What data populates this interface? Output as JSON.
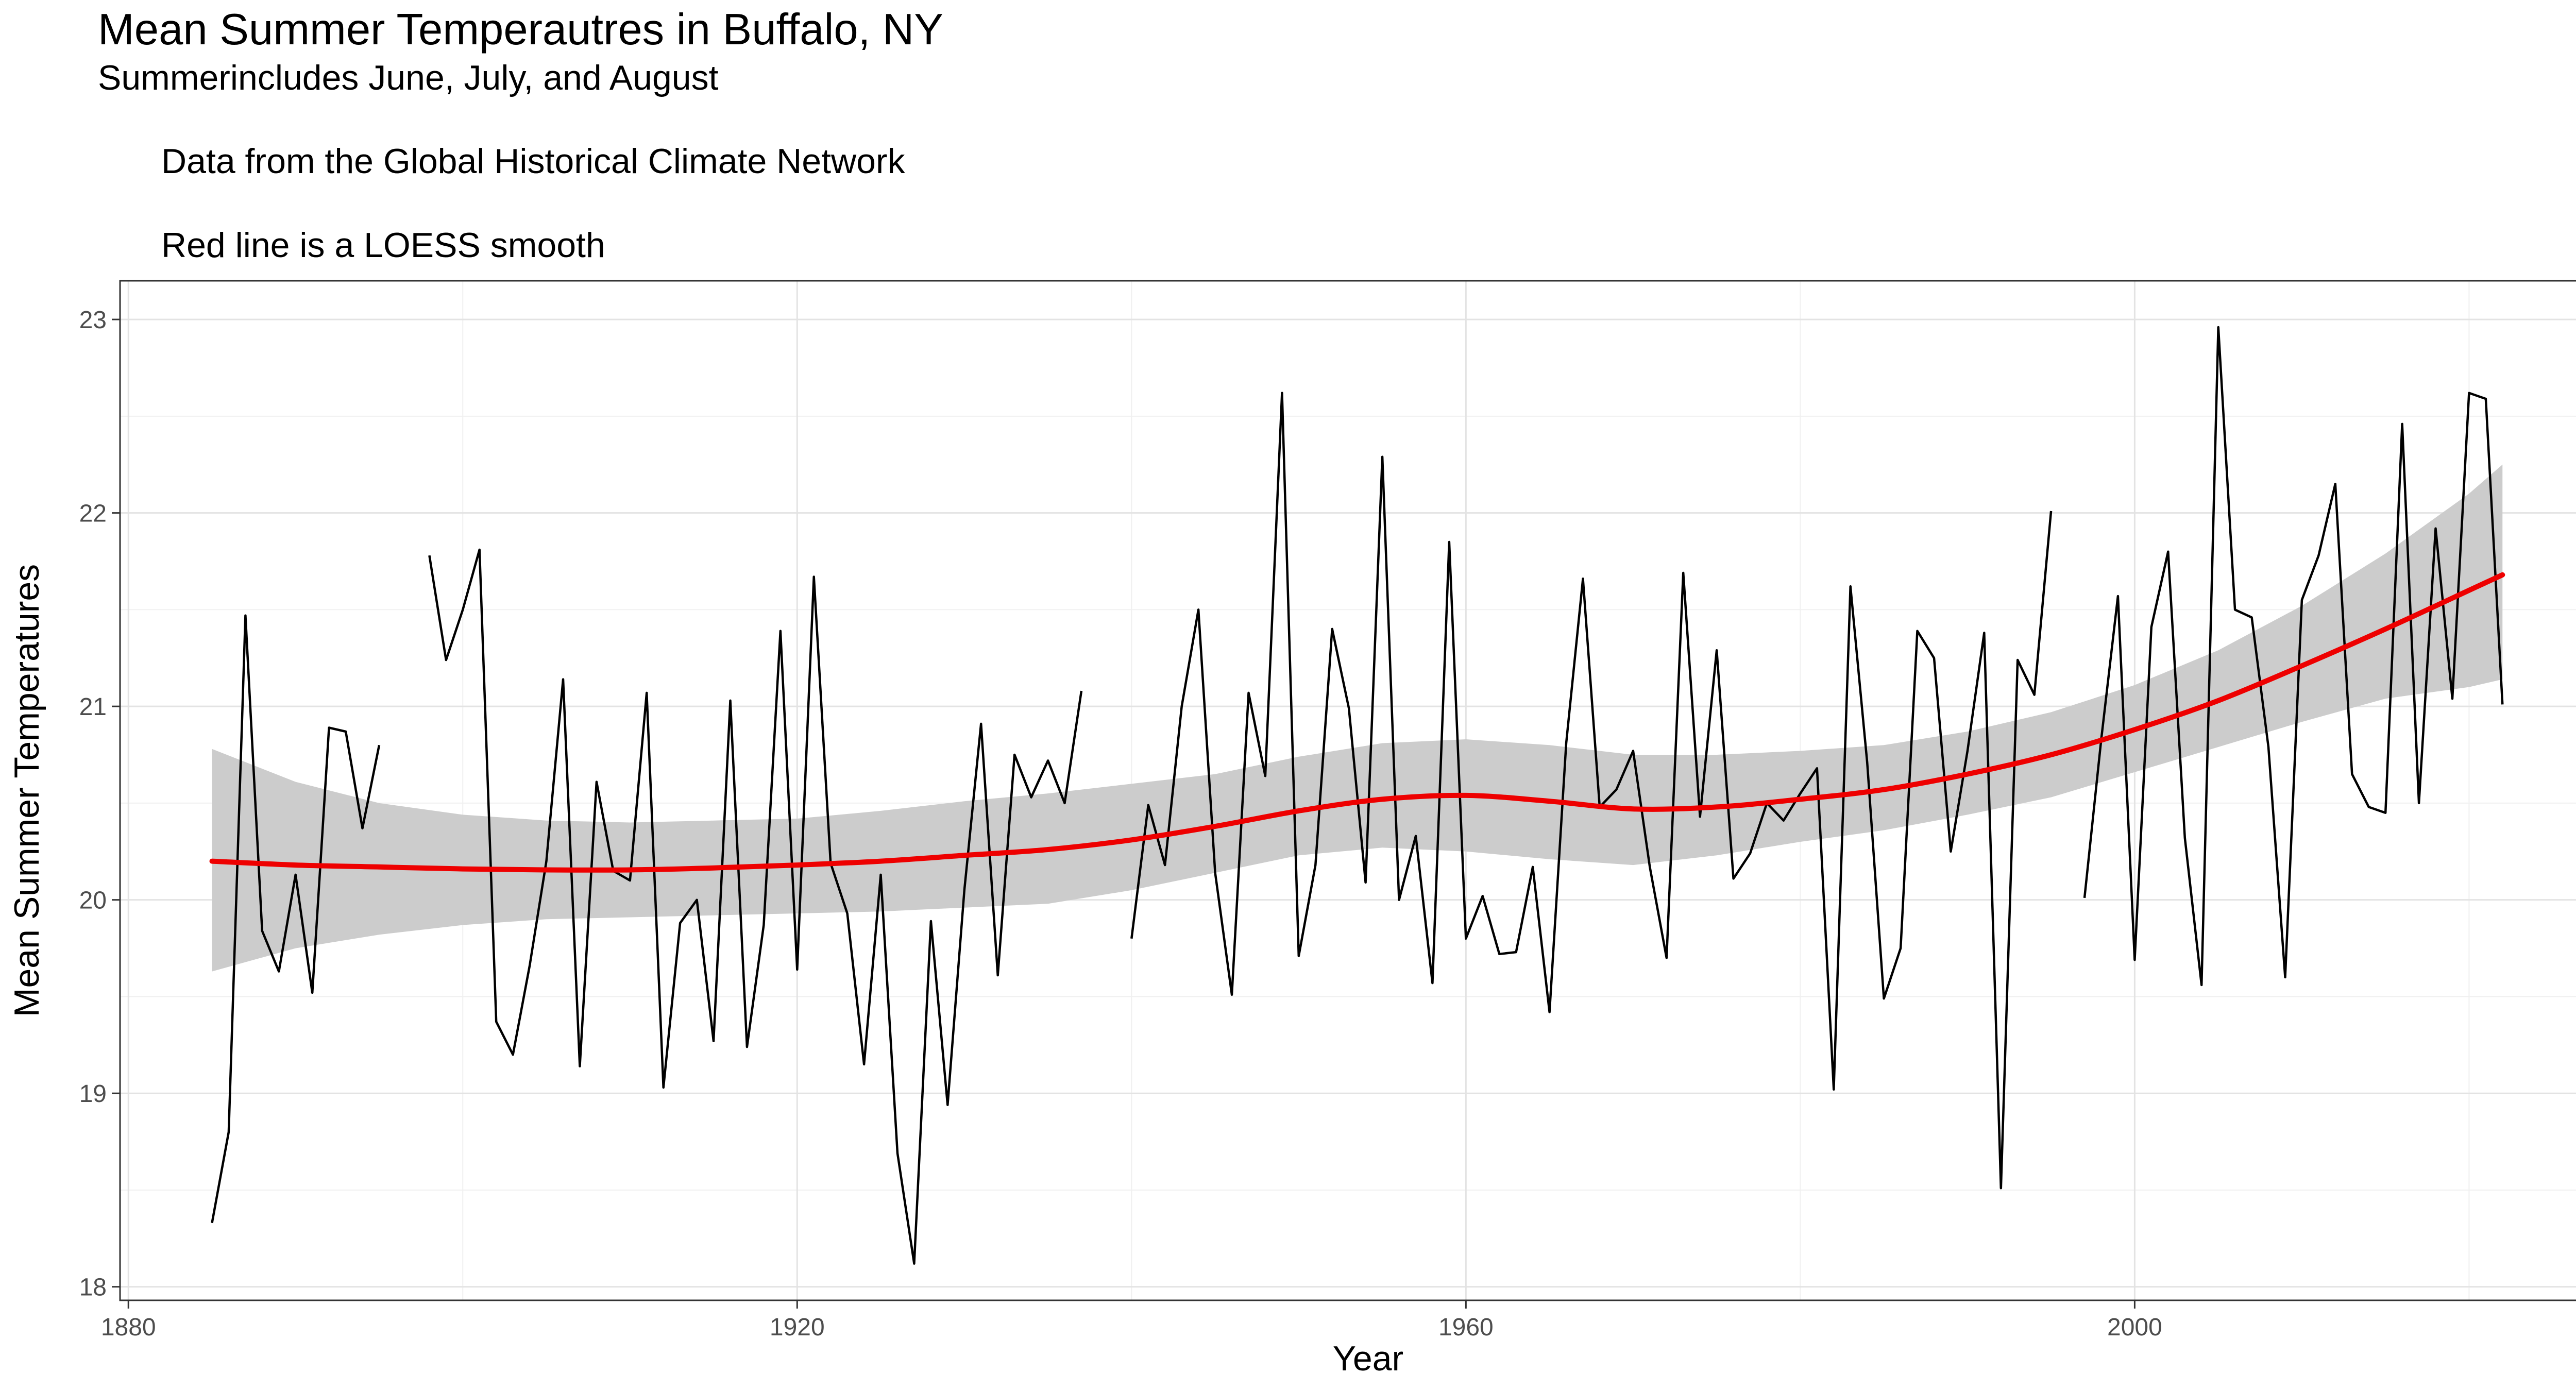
{
  "chart_data": {
    "type": "line",
    "title": "Mean Summer Temperautres in Buffalo, NY",
    "subtitle": "Summerincludes June, July, and August",
    "annotations": [
      "Data from the Global Historical Climate Network",
      "Red line is a LOESS smooth"
    ],
    "xlabel": "Year",
    "ylabel": "Mean Summer Temperatures",
    "xlim": [
      1879.5,
      2028.8
    ],
    "ylim": [
      17.93,
      23.2
    ],
    "x_ticks": [
      "1880",
      "1920",
      "1960",
      "2000"
    ],
    "y_ticks": [
      "18",
      "19",
      "20",
      "21",
      "22",
      "23"
    ],
    "grid": true,
    "series": [
      {
        "kind": "observed",
        "color": "#000000",
        "points": [
          [
            1885,
            18.33
          ],
          [
            1886,
            18.8
          ],
          [
            1887,
            21.47
          ],
          [
            1888,
            19.84
          ],
          [
            1889,
            19.63
          ],
          [
            1890,
            20.13
          ],
          [
            1891,
            19.52
          ],
          [
            1892,
            20.89
          ],
          [
            1893,
            20.87
          ],
          [
            1894,
            20.37
          ],
          [
            1895,
            20.8
          ],
          [
            1898,
            21.78
          ],
          [
            1899,
            21.24
          ],
          [
            1900,
            21.5
          ],
          [
            1901,
            21.81
          ],
          [
            1902,
            19.37
          ],
          [
            1903,
            19.2
          ],
          [
            1904,
            19.66
          ],
          [
            1905,
            20.2
          ],
          [
            1906,
            21.14
          ],
          [
            1907,
            19.14
          ],
          [
            1908,
            20.61
          ],
          [
            1909,
            20.15
          ],
          [
            1910,
            20.1
          ],
          [
            1911,
            21.07
          ],
          [
            1912,
            19.03
          ],
          [
            1913,
            19.88
          ],
          [
            1914,
            20.0
          ],
          [
            1915,
            19.27
          ],
          [
            1916,
            21.03
          ],
          [
            1917,
            19.24
          ],
          [
            1918,
            19.87
          ],
          [
            1919,
            21.39
          ],
          [
            1920,
            19.64
          ],
          [
            1921,
            21.67
          ],
          [
            1922,
            20.19
          ],
          [
            1923,
            19.93
          ],
          [
            1924,
            19.15
          ],
          [
            1925,
            20.13
          ],
          [
            1926,
            18.69
          ],
          [
            1927,
            18.12
          ],
          [
            1928,
            19.89
          ],
          [
            1929,
            18.94
          ],
          [
            1930,
            20.05
          ],
          [
            1931,
            20.91
          ],
          [
            1932,
            19.61
          ],
          [
            1933,
            20.75
          ],
          [
            1934,
            20.53
          ],
          [
            1935,
            20.72
          ],
          [
            1936,
            20.5
          ],
          [
            1937,
            21.08
          ],
          [
            1940,
            19.8
          ],
          [
            1941,
            20.49
          ],
          [
            1942,
            20.18
          ],
          [
            1943,
            21.0
          ],
          [
            1944,
            21.5
          ],
          [
            1945,
            20.14
          ],
          [
            1946,
            19.51
          ],
          [
            1947,
            21.07
          ],
          [
            1948,
            20.64
          ],
          [
            1949,
            22.62
          ],
          [
            1950,
            19.71
          ],
          [
            1951,
            20.18
          ],
          [
            1952,
            21.4
          ],
          [
            1953,
            20.99
          ],
          [
            1954,
            20.09
          ],
          [
            1955,
            22.29
          ],
          [
            1956,
            20.0
          ],
          [
            1957,
            20.33
          ],
          [
            1958,
            19.57
          ],
          [
            1959,
            21.85
          ],
          [
            1960,
            19.8
          ],
          [
            1961,
            20.02
          ],
          [
            1962,
            19.72
          ],
          [
            1963,
            19.73
          ],
          [
            1964,
            20.17
          ],
          [
            1965,
            19.42
          ],
          [
            1966,
            20.81
          ],
          [
            1967,
            21.66
          ],
          [
            1968,
            20.48
          ],
          [
            1969,
            20.57
          ],
          [
            1970,
            20.77
          ],
          [
            1971,
            20.17
          ],
          [
            1972,
            19.7
          ],
          [
            1973,
            21.69
          ],
          [
            1974,
            20.43
          ],
          [
            1975,
            21.29
          ],
          [
            1976,
            20.11
          ],
          [
            1977,
            20.24
          ],
          [
            1978,
            20.5
          ],
          [
            1979,
            20.41
          ],
          [
            1980,
            20.55
          ],
          [
            1981,
            20.68
          ],
          [
            1982,
            19.02
          ],
          [
            1983,
            21.62
          ],
          [
            1984,
            20.71
          ],
          [
            1985,
            19.49
          ],
          [
            1986,
            19.75
          ],
          [
            1987,
            21.39
          ],
          [
            1988,
            21.25
          ],
          [
            1989,
            20.25
          ],
          [
            1990,
            20.77
          ],
          [
            1991,
            21.38
          ],
          [
            1992,
            18.51
          ],
          [
            1993,
            21.24
          ],
          [
            1994,
            21.06
          ],
          [
            1995,
            22.01
          ],
          [
            1997,
            20.01
          ],
          [
            1998,
            20.83
          ],
          [
            1999,
            21.57
          ],
          [
            2000,
            19.69
          ],
          [
            2001,
            21.41
          ],
          [
            2002,
            21.8
          ],
          [
            2003,
            20.32
          ],
          [
            2004,
            19.56
          ],
          [
            2005,
            22.96
          ],
          [
            2006,
            21.5
          ],
          [
            2007,
            21.46
          ],
          [
            2008,
            20.79
          ],
          [
            2009,
            19.6
          ],
          [
            2010,
            21.55
          ],
          [
            2011,
            21.78
          ],
          [
            2012,
            22.15
          ],
          [
            2013,
            20.65
          ],
          [
            2014,
            20.48
          ],
          [
            2015,
            20.45
          ],
          [
            2016,
            22.46
          ],
          [
            2017,
            20.5
          ],
          [
            2018,
            21.92
          ],
          [
            2019,
            21.04
          ],
          [
            2020,
            22.62
          ],
          [
            2021,
            22.59
          ],
          [
            2022,
            21.01
          ]
        ]
      },
      {
        "kind": "loess",
        "name": "",
        "color": "#ee0000",
        "x": [
          1885,
          1890,
          1895,
          1900,
          1905,
          1910,
          1915,
          1920,
          1925,
          1930,
          1935,
          1940,
          1945,
          1950,
          1955,
          1960,
          1965,
          1970,
          1975,
          1980,
          1985,
          1990,
          1995,
          2000,
          2005,
          2010,
          2015,
          2020,
          2022
        ],
        "y": [
          20.2,
          20.18,
          20.17,
          20.16,
          20.155,
          20.155,
          20.165,
          20.18,
          20.2,
          20.23,
          20.26,
          20.31,
          20.38,
          20.46,
          20.52,
          20.54,
          20.51,
          20.47,
          20.48,
          20.52,
          20.57,
          20.65,
          20.75,
          20.88,
          21.03,
          21.21,
          21.4,
          21.6,
          21.68
        ],
        "ci_low": [
          19.63,
          19.75,
          19.82,
          19.87,
          19.9,
          19.91,
          19.92,
          19.93,
          19.94,
          19.96,
          19.98,
          20.05,
          20.14,
          20.23,
          20.27,
          20.25,
          20.21,
          20.18,
          20.23,
          20.3,
          20.36,
          20.44,
          20.53,
          20.66,
          20.79,
          20.92,
          21.04,
          21.1,
          21.14
        ],
        "ci_high": [
          20.78,
          20.61,
          20.5,
          20.44,
          20.41,
          20.4,
          20.41,
          20.42,
          20.46,
          20.51,
          20.55,
          20.6,
          20.65,
          20.74,
          20.81,
          20.83,
          20.8,
          20.75,
          20.75,
          20.77,
          20.8,
          20.87,
          20.97,
          21.11,
          21.29,
          21.52,
          21.79,
          22.1,
          22.25
        ],
        "ci_color": "#cccccc"
      }
    ]
  }
}
